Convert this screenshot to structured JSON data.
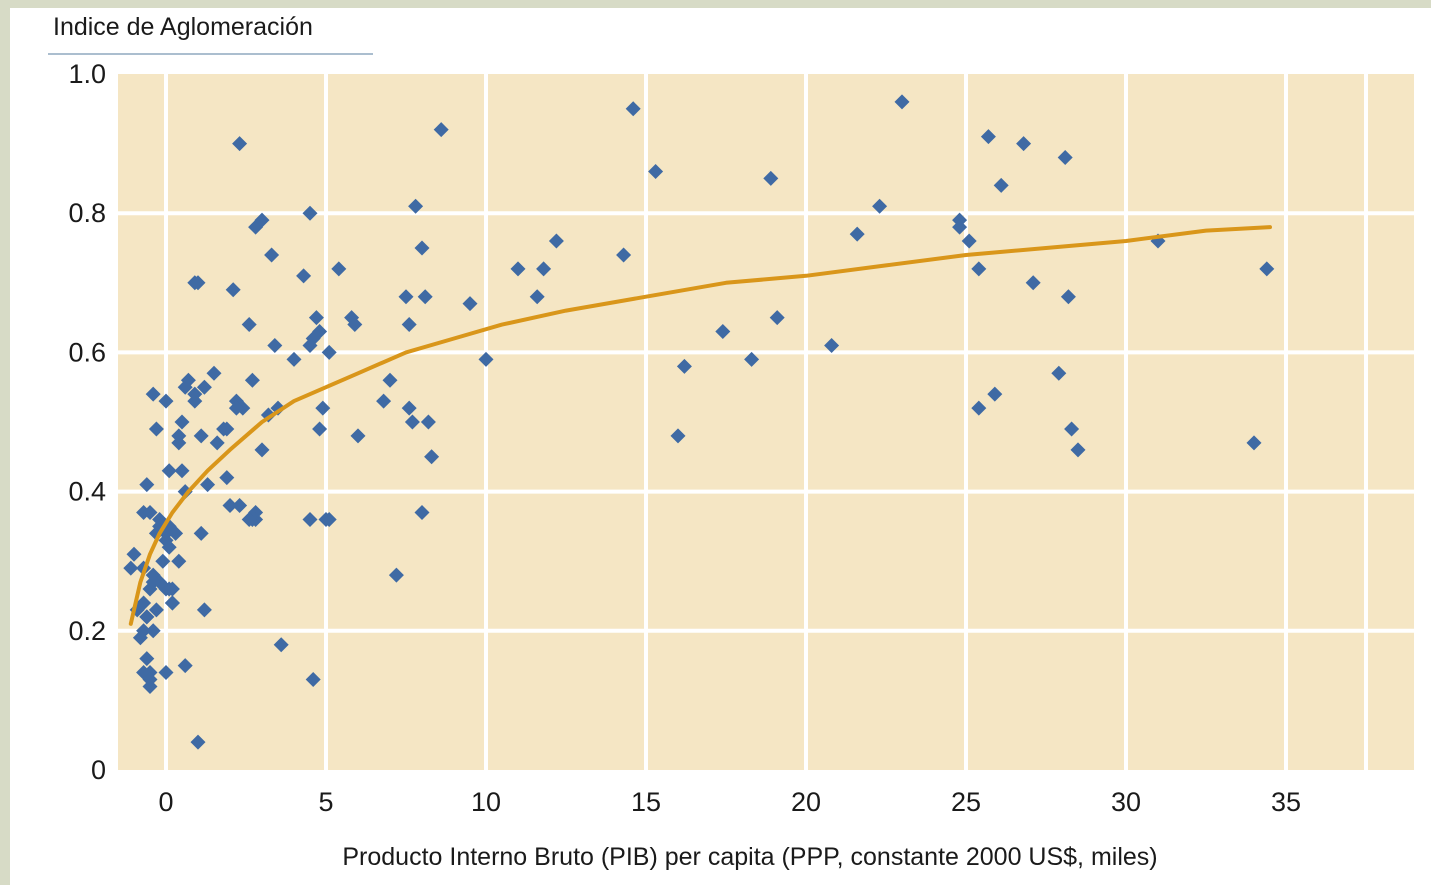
{
  "chart_data": {
    "type": "scatter",
    "title": "",
    "ylabel": "Indice de Aglomeración",
    "xlabel": "Producto Interno Bruto (PIB) per capita (PPP, constante 2000 US$, miles)",
    "xlim": [
      -1.5,
      39
    ],
    "ylim": [
      0,
      1.0
    ],
    "x_ticks": [
      0,
      5,
      10,
      15,
      20,
      25,
      30,
      35
    ],
    "y_ticks": [
      0,
      0.2,
      0.4,
      0.6,
      0.8,
      1.0
    ],
    "x_tick_labels": [
      "0",
      "5",
      "10",
      "15",
      "20",
      "25",
      "30",
      "35"
    ],
    "y_tick_labels": [
      "0",
      "0.2",
      "0.4",
      "0.6",
      "0.8",
      "1.0"
    ],
    "grid": true,
    "colors": {
      "plot_background": "#f5e6c4",
      "grid": "#ffffff",
      "points": "#3f6aa4",
      "trend": "#d9961a",
      "page_background": "#d7dbc6"
    },
    "series": [
      {
        "type": "scatter",
        "x": [
          -1.1,
          -1.0,
          -0.9,
          -0.8,
          -0.7,
          -0.7,
          -0.6,
          -0.6,
          -0.5,
          -0.5,
          -0.4,
          -0.4,
          -0.3,
          -0.3,
          -0.2,
          -0.2,
          -0.1,
          0.0,
          0.0,
          0.1,
          0.1,
          0.2,
          0.2,
          0.3,
          0.4,
          0.5,
          0.5,
          0.6,
          0.7,
          -0.6,
          -0.7,
          -0.4,
          -0.5,
          -0.3,
          -0.2,
          0.0,
          0.1,
          0.2,
          0.6,
          0.9,
          1.1,
          1.2,
          -0.5,
          -0.6,
          -0.7,
          0.0,
          -0.7,
          -0.5,
          -0.4,
          0.0,
          0.4,
          0.6,
          0.9,
          1.0,
          1.1,
          1.3,
          1.5,
          1.6,
          1.8,
          1.9,
          2.1,
          2.2,
          2.3,
          2.4,
          2.6,
          2.7,
          2.8,
          3.0,
          3.2,
          3.3,
          3.5,
          2.3,
          2.8,
          3.0,
          3.4,
          4.0,
          4.3,
          4.5,
          4.6,
          4.7,
          4.8,
          5.1,
          4.9,
          5.4,
          5.8,
          5.9,
          6.0,
          6.8,
          7.0,
          7.5,
          7.6,
          7.7,
          7.8,
          8.0,
          8.1,
          8.3,
          8.6,
          9.5,
          10.0,
          11.0,
          11.6,
          11.8,
          12.2,
          14.3,
          14.6,
          15.3,
          16.0,
          16.2,
          17.4,
          18.3,
          18.9,
          19.1,
          20.8,
          21.6,
          22.3,
          23.0,
          24.8,
          24.8,
          25.1,
          25.4,
          25.4,
          25.7,
          25.9,
          26.1,
          26.8,
          27.1,
          28.1,
          28.2,
          27.9,
          28.3,
          28.5,
          31.0,
          34.0,
          34.4,
          2.2,
          2.8,
          3.6,
          4.5,
          4.6,
          4.5,
          5.0,
          4.8,
          5.1,
          7.2,
          8.0,
          1.0,
          1.2,
          0.9,
          0.0,
          0.1,
          0.4,
          7.6,
          8.2,
          2.0,
          2.7,
          1.9,
          2.6
        ],
        "y": [
          0.29,
          0.31,
          0.23,
          0.19,
          0.24,
          0.37,
          0.16,
          0.22,
          0.14,
          0.26,
          0.2,
          0.28,
          0.23,
          0.34,
          0.27,
          0.36,
          0.3,
          0.33,
          0.35,
          0.43,
          0.35,
          0.24,
          0.26,
          0.34,
          0.47,
          0.5,
          0.43,
          0.55,
          0.56,
          0.41,
          0.14,
          0.54,
          0.12,
          0.49,
          0.35,
          0.26,
          0.32,
          0.24,
          0.4,
          0.53,
          0.48,
          0.55,
          0.13,
          0.22,
          0.29,
          0.53,
          0.2,
          0.37,
          0.27,
          0.14,
          0.48,
          0.15,
          0.7,
          0.04,
          0.34,
          0.41,
          0.57,
          0.47,
          0.49,
          0.42,
          0.69,
          0.53,
          0.9,
          0.52,
          0.64,
          0.56,
          0.78,
          0.79,
          0.51,
          0.74,
          0.52,
          0.38,
          0.37,
          0.46,
          0.61,
          0.59,
          0.71,
          0.8,
          0.62,
          0.65,
          0.63,
          0.6,
          0.52,
          0.72,
          0.65,
          0.64,
          0.48,
          0.53,
          0.56,
          0.68,
          0.64,
          0.5,
          0.81,
          0.75,
          0.68,
          0.45,
          0.92,
          0.67,
          0.59,
          0.72,
          0.68,
          0.72,
          0.76,
          0.74,
          0.95,
          0.86,
          0.48,
          0.58,
          0.63,
          0.59,
          0.85,
          0.65,
          0.61,
          0.77,
          0.81,
          0.96,
          0.79,
          0.78,
          0.76,
          0.72,
          0.52,
          0.91,
          0.54,
          0.84,
          0.9,
          0.7,
          0.88,
          0.68,
          0.57,
          0.49,
          0.46,
          0.76,
          0.47,
          0.72,
          0.52,
          0.36,
          0.18,
          0.36,
          0.13,
          0.61,
          0.36,
          0.49,
          0.36,
          0.28,
          0.37,
          0.7,
          0.23,
          0.54,
          0.34,
          0.26,
          0.3,
          0.52,
          0.5,
          0.38,
          0.36,
          0.49,
          0.36
        ]
      },
      {
        "type": "line",
        "x": [
          -1.1,
          -0.8,
          -0.5,
          -0.2,
          0.2,
          0.7,
          1.3,
          2.0,
          3.0,
          4.0,
          5.0,
          6.0,
          7.5,
          9.0,
          10.5,
          12.5,
          15.0,
          17.5,
          20.0,
          22.5,
          25.0,
          27.5,
          30.0,
          32.5,
          34.5
        ],
        "y": [
          0.21,
          0.27,
          0.31,
          0.34,
          0.37,
          0.4,
          0.43,
          0.46,
          0.5,
          0.53,
          0.55,
          0.57,
          0.6,
          0.62,
          0.64,
          0.66,
          0.68,
          0.7,
          0.71,
          0.725,
          0.74,
          0.75,
          0.76,
          0.775,
          0.78
        ]
      }
    ]
  }
}
